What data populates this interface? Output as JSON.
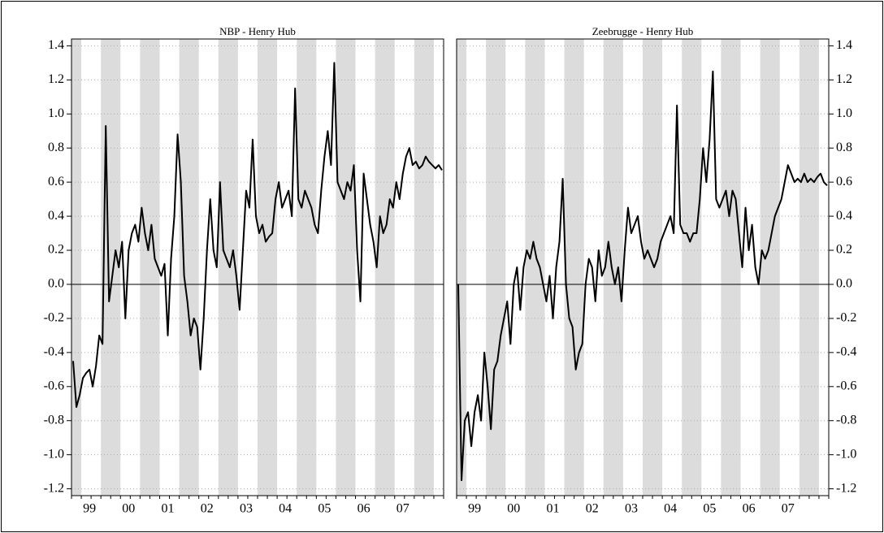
{
  "chart_data": [
    {
      "type": "line",
      "title": "NBP - Henry Hub",
      "color": "#000000",
      "y_axis_side": "left",
      "grid": true,
      "zero_line": true,
      "ylim": [
        -1.24,
        1.44
      ],
      "yticks": [
        {
          "value": -1.2,
          "label": "-1.2"
        },
        {
          "value": -1,
          "label": "-1.0"
        },
        -0.8,
        -0.6,
        -0.4,
        -0.2,
        {
          "value": 0,
          "label": "0.0"
        },
        0.2,
        0.4,
        0.6,
        0.8,
        {
          "value": 1,
          "label": "1.0"
        },
        1.2,
        1.4
      ],
      "categories": [
        null,
        null,
        null,
        null,
        null,
        "99",
        null,
        null,
        null,
        null,
        null,
        null,
        null,
        null,
        null,
        null,
        null,
        "00",
        null,
        null,
        null,
        null,
        null,
        null,
        null,
        null,
        null,
        null,
        null,
        "01",
        null,
        null,
        null,
        null,
        null,
        null,
        null,
        null,
        null,
        null,
        null,
        "02",
        null,
        null,
        null,
        null,
        null,
        null,
        null,
        null,
        null,
        null,
        null,
        "03",
        null,
        null,
        null,
        null,
        null,
        null,
        null,
        null,
        null,
        null,
        null,
        "04",
        null,
        null,
        null,
        null,
        null,
        null,
        null,
        null,
        null,
        null,
        null,
        "05",
        null,
        null,
        null,
        null,
        null,
        null,
        null,
        null,
        null,
        null,
        null,
        "06",
        null,
        null,
        null,
        null,
        null,
        null,
        null,
        null,
        null,
        null,
        null,
        "07",
        null,
        null,
        null,
        null,
        null,
        null,
        null,
        null,
        null,
        null,
        null,
        null
      ],
      "values": [
        -0.45,
        -0.72,
        -0.65,
        -0.55,
        -0.52,
        -0.5,
        -0.6,
        -0.48,
        -0.3,
        -0.35,
        0.93,
        -0.1,
        0.05,
        0.2,
        0.1,
        0.25,
        -0.2,
        0.2,
        0.3,
        0.35,
        0.25,
        0.45,
        0.3,
        0.2,
        0.35,
        0.15,
        0.1,
        0.05,
        0.12,
        -0.3,
        0.15,
        0.4,
        0.88,
        0.6,
        0.05,
        -0.1,
        -0.3,
        -0.2,
        -0.25,
        -0.5,
        -0.2,
        0.2,
        0.5,
        0.2,
        0.1,
        0.6,
        0.2,
        0.15,
        0.1,
        0.2,
        0.05,
        -0.15,
        0.2,
        0.55,
        0.45,
        0.85,
        0.4,
        0.3,
        0.35,
        0.25,
        0.28,
        0.3,
        0.5,
        0.6,
        0.45,
        0.5,
        0.55,
        0.4,
        1.15,
        0.5,
        0.45,
        0.55,
        0.5,
        0.45,
        0.35,
        0.3,
        0.55,
        0.75,
        0.9,
        0.7,
        1.3,
        0.6,
        0.55,
        0.5,
        0.6,
        0.55,
        0.7,
        0.2,
        -0.1,
        0.65,
        0.5,
        0.35,
        0.25,
        0.1,
        0.4,
        0.3,
        0.35,
        0.5,
        0.45,
        0.6,
        0.5,
        0.65,
        0.75,
        0.8,
        0.7,
        0.72,
        0.68,
        0.7,
        0.75,
        0.72,
        0.7,
        0.68,
        0.7,
        0.67
      ]
    },
    {
      "type": "line",
      "title": "Zeebrugge - Henry Hub",
      "color": "#000000",
      "y_axis_side": "right",
      "grid": true,
      "zero_line": true,
      "ylim": [
        -1.24,
        1.44
      ],
      "yticks": [
        {
          "value": -1.2,
          "label": "-1.2"
        },
        {
          "value": -1,
          "label": "-1.0"
        },
        -0.8,
        -0.6,
        -0.4,
        -0.2,
        {
          "value": 0,
          "label": "0.0"
        },
        0.2,
        0.4,
        0.6,
        0.8,
        {
          "value": 1,
          "label": "1.0"
        },
        1.2,
        1.4
      ],
      "categories": [
        null,
        null,
        null,
        null,
        null,
        "99",
        null,
        null,
        null,
        null,
        null,
        null,
        null,
        null,
        null,
        null,
        null,
        "00",
        null,
        null,
        null,
        null,
        null,
        null,
        null,
        null,
        null,
        null,
        null,
        "01",
        null,
        null,
        null,
        null,
        null,
        null,
        null,
        null,
        null,
        null,
        null,
        "02",
        null,
        null,
        null,
        null,
        null,
        null,
        null,
        null,
        null,
        null,
        null,
        "03",
        null,
        null,
        null,
        null,
        null,
        null,
        null,
        null,
        null,
        null,
        null,
        "04",
        null,
        null,
        null,
        null,
        null,
        null,
        null,
        null,
        null,
        null,
        null,
        "05",
        null,
        null,
        null,
        null,
        null,
        null,
        null,
        null,
        null,
        null,
        null,
        "06",
        null,
        null,
        null,
        null,
        null,
        null,
        null,
        null,
        null,
        null,
        null,
        "07",
        null,
        null,
        null,
        null,
        null,
        null,
        null,
        null,
        null,
        null,
        null,
        null
      ],
      "values": [
        0,
        -1.15,
        -0.8,
        -0.75,
        -0.95,
        -0.75,
        -0.65,
        -0.8,
        -0.4,
        -0.6,
        -0.85,
        -0.5,
        -0.45,
        -0.3,
        -0.2,
        -0.1,
        -0.35,
        0,
        0.1,
        -0.15,
        0.1,
        0.2,
        0.15,
        0.25,
        0.15,
        0.1,
        0,
        -0.1,
        0.05,
        -0.2,
        0.1,
        0.25,
        0.62,
        0,
        -0.2,
        -0.25,
        -0.5,
        -0.4,
        -0.35,
        0,
        0.15,
        0.1,
        -0.1,
        0.2,
        0.05,
        0.1,
        0.25,
        0.1,
        0,
        0.1,
        -0.1,
        0.2,
        0.45,
        0.3,
        0.35,
        0.4,
        0.25,
        0.15,
        0.2,
        0.15,
        0.1,
        0.15,
        0.25,
        0.3,
        0.35,
        0.4,
        0.3,
        1.05,
        0.35,
        0.3,
        0.3,
        0.25,
        0.3,
        0.3,
        0.5,
        0.8,
        0.6,
        0.85,
        1.25,
        0.5,
        0.45,
        0.5,
        0.55,
        0.4,
        0.55,
        0.5,
        0.3,
        0.1,
        0.45,
        0.2,
        0.35,
        0.1,
        0,
        0.2,
        0.15,
        0.2,
        0.3,
        0.4,
        0.45,
        0.5,
        0.6,
        0.7,
        0.65,
        0.6,
        0.62,
        0.6,
        0.65,
        0.6,
        0.62,
        0.6,
        0.63,
        0.65,
        0.6,
        0.58
      ]
    }
  ]
}
